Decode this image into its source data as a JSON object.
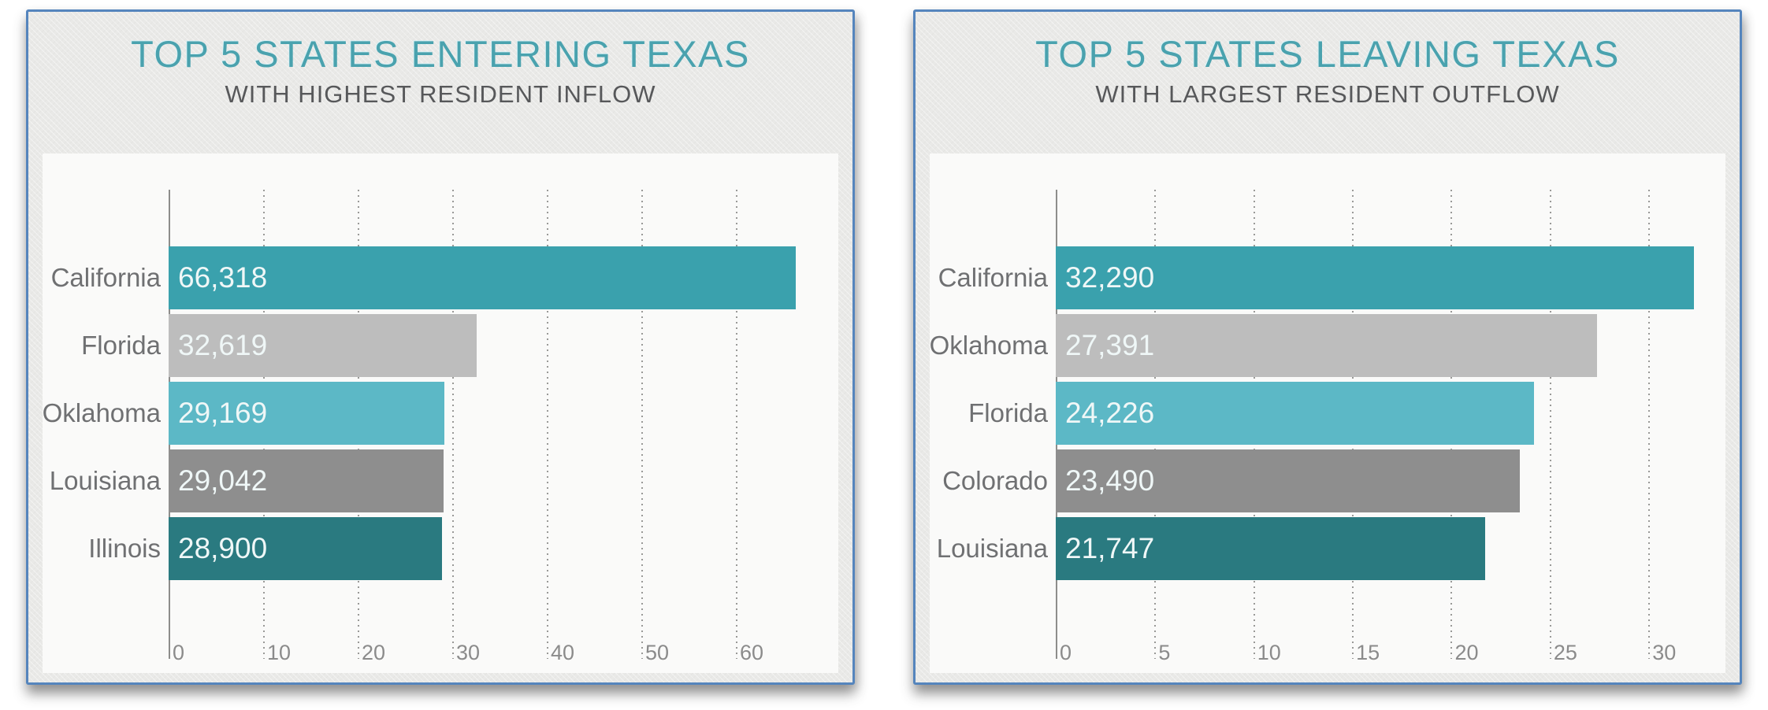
{
  "colors": {
    "card_border": "#5585bd",
    "card_background": "#e9e9e7",
    "plot_background": "#fafaf9",
    "title_teal": "#4aa2ae",
    "subtitle_gray": "#57585a",
    "category_label_gray": "#6f7072",
    "axis_label_gray": "#8b8b8b",
    "value_text": "#eff7f7"
  },
  "chart_data": [
    {
      "type": "bar",
      "orientation": "horizontal",
      "title": "TOP 5 STATES ENTERING TEXAS",
      "subtitle": "WITH HIGHEST RESIDENT INFLOW",
      "categories": [
        "California",
        "Florida",
        "Oklahoma",
        "Louisiana",
        "Illinois"
      ],
      "values": [
        66318,
        32619,
        29169,
        29042,
        28900
      ],
      "value_labels": [
        "66,318",
        "32,619",
        "29,169",
        "29,042",
        "28,900"
      ],
      "bar_colors": [
        "#3aa1ad",
        "#bdbdbd",
        "#5cb8c6",
        "#8e8e8e",
        "#2a7a80"
      ],
      "axis": {
        "min": 0,
        "max": 70000,
        "ticks": [
          0,
          10000,
          20000,
          30000,
          40000,
          50000,
          60000
        ],
        "tick_labels": [
          "0",
          "10",
          "20",
          "30",
          "40",
          "50",
          "60"
        ],
        "units": "thousands"
      },
      "grid": "dotted-vertical",
      "legend": "none"
    },
    {
      "type": "bar",
      "orientation": "horizontal",
      "title": "TOP 5 STATES LEAVING TEXAS",
      "subtitle": "WITH LARGEST RESIDENT OUTFLOW",
      "categories": [
        "California",
        "Oklahoma",
        "Florida",
        "Colorado",
        "Louisiana"
      ],
      "values": [
        32290,
        27391,
        24226,
        23490,
        21747
      ],
      "value_labels": [
        "32,290",
        "27,391",
        "24,226",
        "23,490",
        "21,747"
      ],
      "bar_colors": [
        "#3aa1ad",
        "#bdbdbd",
        "#5cb8c6",
        "#8e8e8e",
        "#2a7a80"
      ],
      "axis": {
        "min": 0,
        "max": 33500,
        "ticks": [
          0,
          5000,
          10000,
          15000,
          20000,
          25000,
          30000
        ],
        "tick_labels": [
          "0",
          "5",
          "10",
          "15",
          "20",
          "25",
          "30"
        ],
        "units": "thousands"
      },
      "grid": "dotted-vertical",
      "legend": "none"
    }
  ]
}
